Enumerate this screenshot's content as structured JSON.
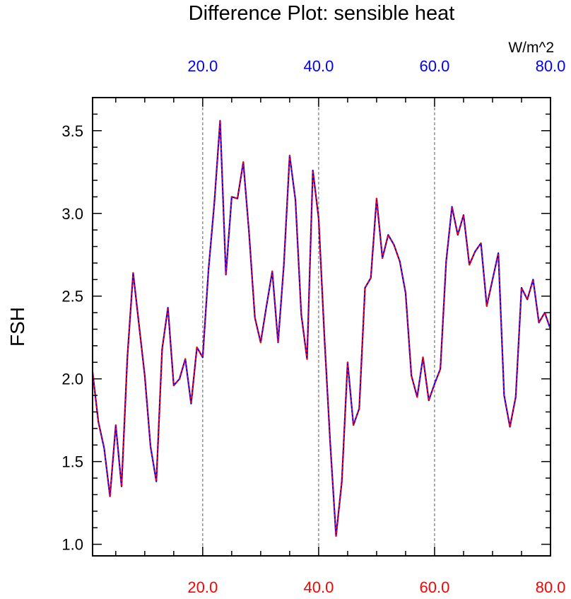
{
  "chart_data": {
    "type": "line",
    "title": "Difference Plot: sensible heat",
    "units": "W/m^2",
    "ylabel": "FSH",
    "xlabel": "",
    "xlim": [
      1,
      80
    ],
    "ylim": [
      0.93,
      3.7
    ],
    "xticks_top": [
      "20.0",
      "40.0",
      "60.0",
      "80.0"
    ],
    "xticks_bottom": [
      "20.0",
      "40.0",
      "60.0",
      "80.0"
    ],
    "xtick_values": [
      20,
      40,
      60,
      80
    ],
    "yticks": [
      "1.0",
      "1.5",
      "2.0",
      "2.5",
      "3.0",
      "3.5"
    ],
    "ytick_values": [
      1.0,
      1.5,
      2.0,
      2.5,
      3.0,
      3.5
    ],
    "grid": "vertical dashed at major x ticks",
    "colors": {
      "top_axis": "#0000ff",
      "bottom_axis": "#ff0000",
      "line_solid": "#0000ff",
      "line_dash": "#ff0000"
    },
    "x": [
      1,
      2,
      3,
      4,
      5,
      6,
      7,
      8,
      9,
      10,
      11,
      12,
      13,
      14,
      15,
      16,
      17,
      18,
      19,
      20,
      21,
      22,
      23,
      24,
      25,
      26,
      27,
      28,
      29,
      30,
      31,
      32,
      33,
      34,
      35,
      36,
      37,
      38,
      39,
      40,
      41,
      42,
      43,
      44,
      45,
      46,
      47,
      48,
      49,
      50,
      51,
      52,
      53,
      54,
      55,
      56,
      57,
      58,
      59,
      60,
      61,
      62,
      63,
      64,
      65,
      66,
      67,
      68,
      69,
      70,
      71,
      72,
      73,
      74,
      75,
      76,
      77,
      78,
      79,
      80
    ],
    "series": [
      {
        "values": [
          2.04,
          1.74,
          1.58,
          1.29,
          1.72,
          1.35,
          2.13,
          2.64,
          2.33,
          2.02,
          1.59,
          1.38,
          2.18,
          2.43,
          1.96,
          2.0,
          2.12,
          1.85,
          2.19,
          2.13,
          2.66,
          3.06,
          3.56,
          2.63,
          3.1,
          3.09,
          3.31,
          2.88,
          2.37,
          2.22,
          2.44,
          2.65,
          2.22,
          2.69,
          3.35,
          3.08,
          2.39,
          2.12,
          3.26,
          2.97,
          2.25,
          1.61,
          1.05,
          1.38,
          2.1,
          1.72,
          1.82,
          2.55,
          2.61,
          3.09,
          2.73,
          2.87,
          2.81,
          2.71,
          2.52,
          2.02,
          1.89,
          2.13,
          1.87,
          1.97,
          2.06,
          2.71,
          3.04,
          2.87,
          2.99,
          2.69,
          2.77,
          2.82,
          2.44,
          2.6,
          2.76,
          1.9,
          1.71,
          1.89,
          2.55,
          2.48,
          2.6,
          2.34,
          2.4,
          2.3
        ]
      }
    ]
  }
}
